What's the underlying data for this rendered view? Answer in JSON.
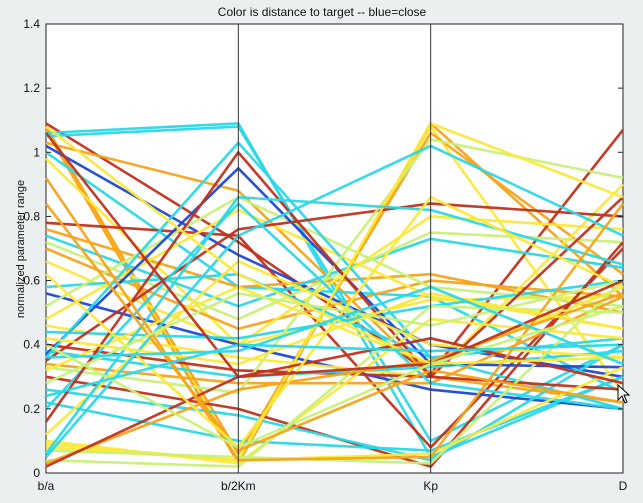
{
  "chart_data": {
    "type": "parallel-coordinates",
    "title": "Color is distance to target -- blue=close",
    "ylabel": "normalized parameter range",
    "xlabel": "",
    "axes": [
      "b/a",
      "b/2Km",
      "Kp",
      "D"
    ],
    "ylim": [
      0,
      1.4
    ],
    "yticks": [
      0,
      0.2,
      0.4,
      0.6,
      0.8,
      1,
      1.2,
      1.4
    ],
    "ytick_labels": [
      "0",
      "0.2",
      "0.4",
      "0.6",
      "0.8",
      "1",
      "1.2",
      "1.4"
    ],
    "grid": false,
    "color_scale": {
      "close": "#1f49d6",
      "near": "#2ad8e8",
      "mid": "#c8f078",
      "far_mid": "#fde83a",
      "far": "#f5a31a",
      "farthest": "#c1301c"
    },
    "lines": [
      {
        "values": [
          1.08,
          0.04,
          1.08,
          0.25
        ],
        "color": "#fde83a"
      },
      {
        "values": [
          1.08,
          0.06,
          1.06,
          0.62
        ],
        "color": "#f5a31a"
      },
      {
        "values": [
          1.07,
          0.03,
          1.09,
          0.55
        ],
        "color": "#f5a31a"
      },
      {
        "values": [
          1.09,
          0.72,
          0.31,
          1.07
        ],
        "color": "#c1301c"
      },
      {
        "values": [
          1.06,
          1.09,
          0.05,
          0.3
        ],
        "color": "#2ad8e8"
      },
      {
        "values": [
          1.05,
          1.08,
          0.1,
          0.4
        ],
        "color": "#2ad8e8"
      },
      {
        "values": [
          1.03,
          0.88,
          0.3,
          0.22
        ],
        "color": "#f5a31a"
      },
      {
        "values": [
          1.02,
          0.68,
          0.4,
          0.3
        ],
        "color": "#1f49d6"
      },
      {
        "values": [
          1.0,
          0.58,
          0.55,
          0.25
        ],
        "color": "#2ad8e8"
      },
      {
        "values": [
          0.98,
          0.4,
          0.54,
          0.55
        ],
        "color": "#fde83a"
      },
      {
        "values": [
          0.78,
          0.74,
          0.08,
          0.7
        ],
        "color": "#c1301c"
      },
      {
        "values": [
          0.76,
          0.58,
          0.62,
          0.5
        ],
        "color": "#f5a31a"
      },
      {
        "values": [
          0.74,
          0.52,
          0.73,
          0.64
        ],
        "color": "#2ad8e8"
      },
      {
        "values": [
          0.72,
          0.48,
          0.75,
          0.72
        ],
        "color": "#c8f078"
      },
      {
        "values": [
          0.7,
          0.45,
          0.6,
          0.55
        ],
        "color": "#f5a31a"
      },
      {
        "values": [
          0.66,
          0.4,
          0.8,
          0.76
        ],
        "color": "#fde83a"
      },
      {
        "values": [
          0.58,
          0.62,
          0.36,
          0.42
        ],
        "color": "#2ad8e8"
      },
      {
        "values": [
          0.56,
          0.4,
          0.26,
          0.2
        ],
        "color": "#1f49d6"
      },
      {
        "values": [
          0.52,
          0.86,
          0.58,
          0.52
        ],
        "color": "#c8f078"
      },
      {
        "values": [
          0.48,
          0.82,
          0.55,
          0.45
        ],
        "color": "#fde83a"
      },
      {
        "values": [
          0.46,
          0.36,
          0.3,
          0.9
        ],
        "color": "#fde83a"
      },
      {
        "values": [
          0.44,
          0.42,
          0.52,
          0.6
        ],
        "color": "#2ad8e8"
      },
      {
        "values": [
          0.4,
          0.32,
          0.3,
          0.86
        ],
        "color": "#c1301c"
      },
      {
        "values": [
          0.38,
          0.3,
          0.33,
          0.38
        ],
        "color": "#2ad8e8"
      },
      {
        "values": [
          0.37,
          0.95,
          0.34,
          0.33
        ],
        "color": "#1f49d6"
      },
      {
        "values": [
          0.36,
          1.03,
          0.36,
          0.2
        ],
        "color": "#2ad8e8"
      },
      {
        "values": [
          0.35,
          0.76,
          0.84,
          0.8
        ],
        "color": "#c1301c"
      },
      {
        "values": [
          0.34,
          0.28,
          0.28,
          0.55
        ],
        "color": "#f5a31a"
      },
      {
        "values": [
          0.33,
          0.25,
          1.04,
          0.92
        ],
        "color": "#c8f078"
      },
      {
        "values": [
          0.32,
          0.58,
          0.34,
          0.58
        ],
        "color": "#fde83a"
      },
      {
        "values": [
          0.3,
          0.2,
          0.02,
          0.72
        ],
        "color": "#c1301c"
      },
      {
        "values": [
          0.26,
          0.18,
          0.04,
          0.4
        ],
        "color": "#2ad8e8"
      },
      {
        "values": [
          0.22,
          0.1,
          0.07,
          0.3
        ],
        "color": "#2ad8e8"
      },
      {
        "values": [
          0.2,
          0.84,
          0.28,
          0.2
        ],
        "color": "#2ad8e8"
      },
      {
        "values": [
          0.16,
          1.0,
          0.3,
          0.26
        ],
        "color": "#c1301c"
      },
      {
        "values": [
          0.12,
          0.66,
          0.4,
          0.36
        ],
        "color": "#fde83a"
      },
      {
        "values": [
          0.1,
          0.03,
          0.48,
          0.42
        ],
        "color": "#fde83a"
      },
      {
        "values": [
          0.09,
          0.04,
          1.09,
          0.86
        ],
        "color": "#fde83a"
      },
      {
        "values": [
          0.08,
          0.04,
          0.06,
          0.33
        ],
        "color": "#fde83a"
      },
      {
        "values": [
          0.07,
          0.05,
          0.03,
          0.6
        ],
        "color": "#c8f078"
      },
      {
        "values": [
          0.06,
          0.86,
          0.82,
          0.65
        ],
        "color": "#2ad8e8"
      },
      {
        "values": [
          0.05,
          0.74,
          1.02,
          0.74
        ],
        "color": "#2ad8e8"
      },
      {
        "values": [
          0.04,
          0.02,
          0.52,
          0.5
        ],
        "color": "#c8f078"
      },
      {
        "values": [
          0.03,
          0.26,
          0.35,
          0.56
        ],
        "color": "#f5a31a"
      },
      {
        "values": [
          0.02,
          0.3,
          0.42,
          0.28
        ],
        "color": "#c1301c"
      },
      {
        "values": [
          0.92,
          0.04,
          0.05,
          0.84
        ],
        "color": "#f5a31a"
      },
      {
        "values": [
          0.84,
          0.07,
          0.32,
          0.22
        ],
        "color": "#f5a31a"
      },
      {
        "values": [
          0.62,
          0.08,
          0.86,
          0.58
        ],
        "color": "#fde83a"
      },
      {
        "values": [
          0.42,
          0.34,
          0.56,
          0.45
        ],
        "color": "#fde83a"
      },
      {
        "values": [
          0.28,
          0.56,
          0.46,
          0.6
        ],
        "color": "#c8f078"
      },
      {
        "values": [
          1.08,
          0.62,
          0.34,
          0.36
        ],
        "color": "#fde83a"
      },
      {
        "values": [
          1.06,
          0.3,
          0.34,
          0.6
        ],
        "color": "#c1301c"
      },
      {
        "values": [
          0.36,
          0.38,
          0.58,
          0.34
        ],
        "color": "#2ad8e8"
      },
      {
        "values": [
          0.4,
          0.08,
          0.34,
          0.52
        ],
        "color": "#c8f078"
      },
      {
        "values": [
          0.24,
          0.4,
          0.38,
          0.4
        ],
        "color": "#2ad8e8"
      }
    ]
  }
}
